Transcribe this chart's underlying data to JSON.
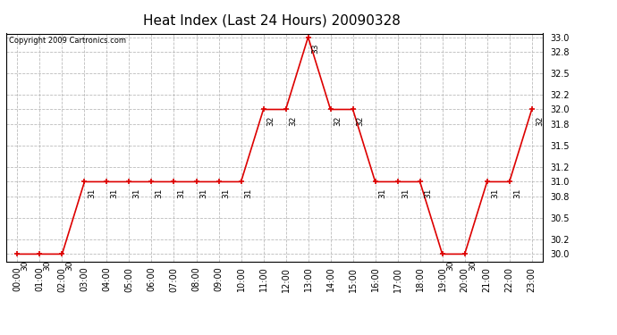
{
  "title": "Heat Index (Last 24 Hours) 20090328",
  "copyright_text": "Copyright 2009 Cartronics.com",
  "x_labels": [
    "00:00",
    "01:00",
    "02:00",
    "03:00",
    "04:00",
    "05:00",
    "06:00",
    "07:00",
    "08:00",
    "09:00",
    "10:00",
    "11:00",
    "12:00",
    "13:00",
    "14:00",
    "15:00",
    "16:00",
    "17:00",
    "18:00",
    "19:00",
    "20:00",
    "21:00",
    "22:00",
    "23:00"
  ],
  "y_values": [
    30,
    30,
    30,
    31,
    31,
    31,
    31,
    31,
    31,
    31,
    31,
    32,
    32,
    33,
    32,
    32,
    31,
    31,
    31,
    30,
    30,
    31,
    31,
    32
  ],
  "line_color": "#dd0000",
  "marker_color": "#dd0000",
  "bg_color": "#ffffff",
  "grid_color": "#bbbbbb",
  "ylim_min": 29.9,
  "ylim_max": 33.05,
  "yticks": [
    30.0,
    30.2,
    30.5,
    30.8,
    31.0,
    31.2,
    31.5,
    31.8,
    32.0,
    32.2,
    32.5,
    32.8,
    33.0
  ],
  "title_fontsize": 11,
  "tick_fontsize": 7,
  "annotation_fontsize": 6.5,
  "copyright_fontsize": 6
}
